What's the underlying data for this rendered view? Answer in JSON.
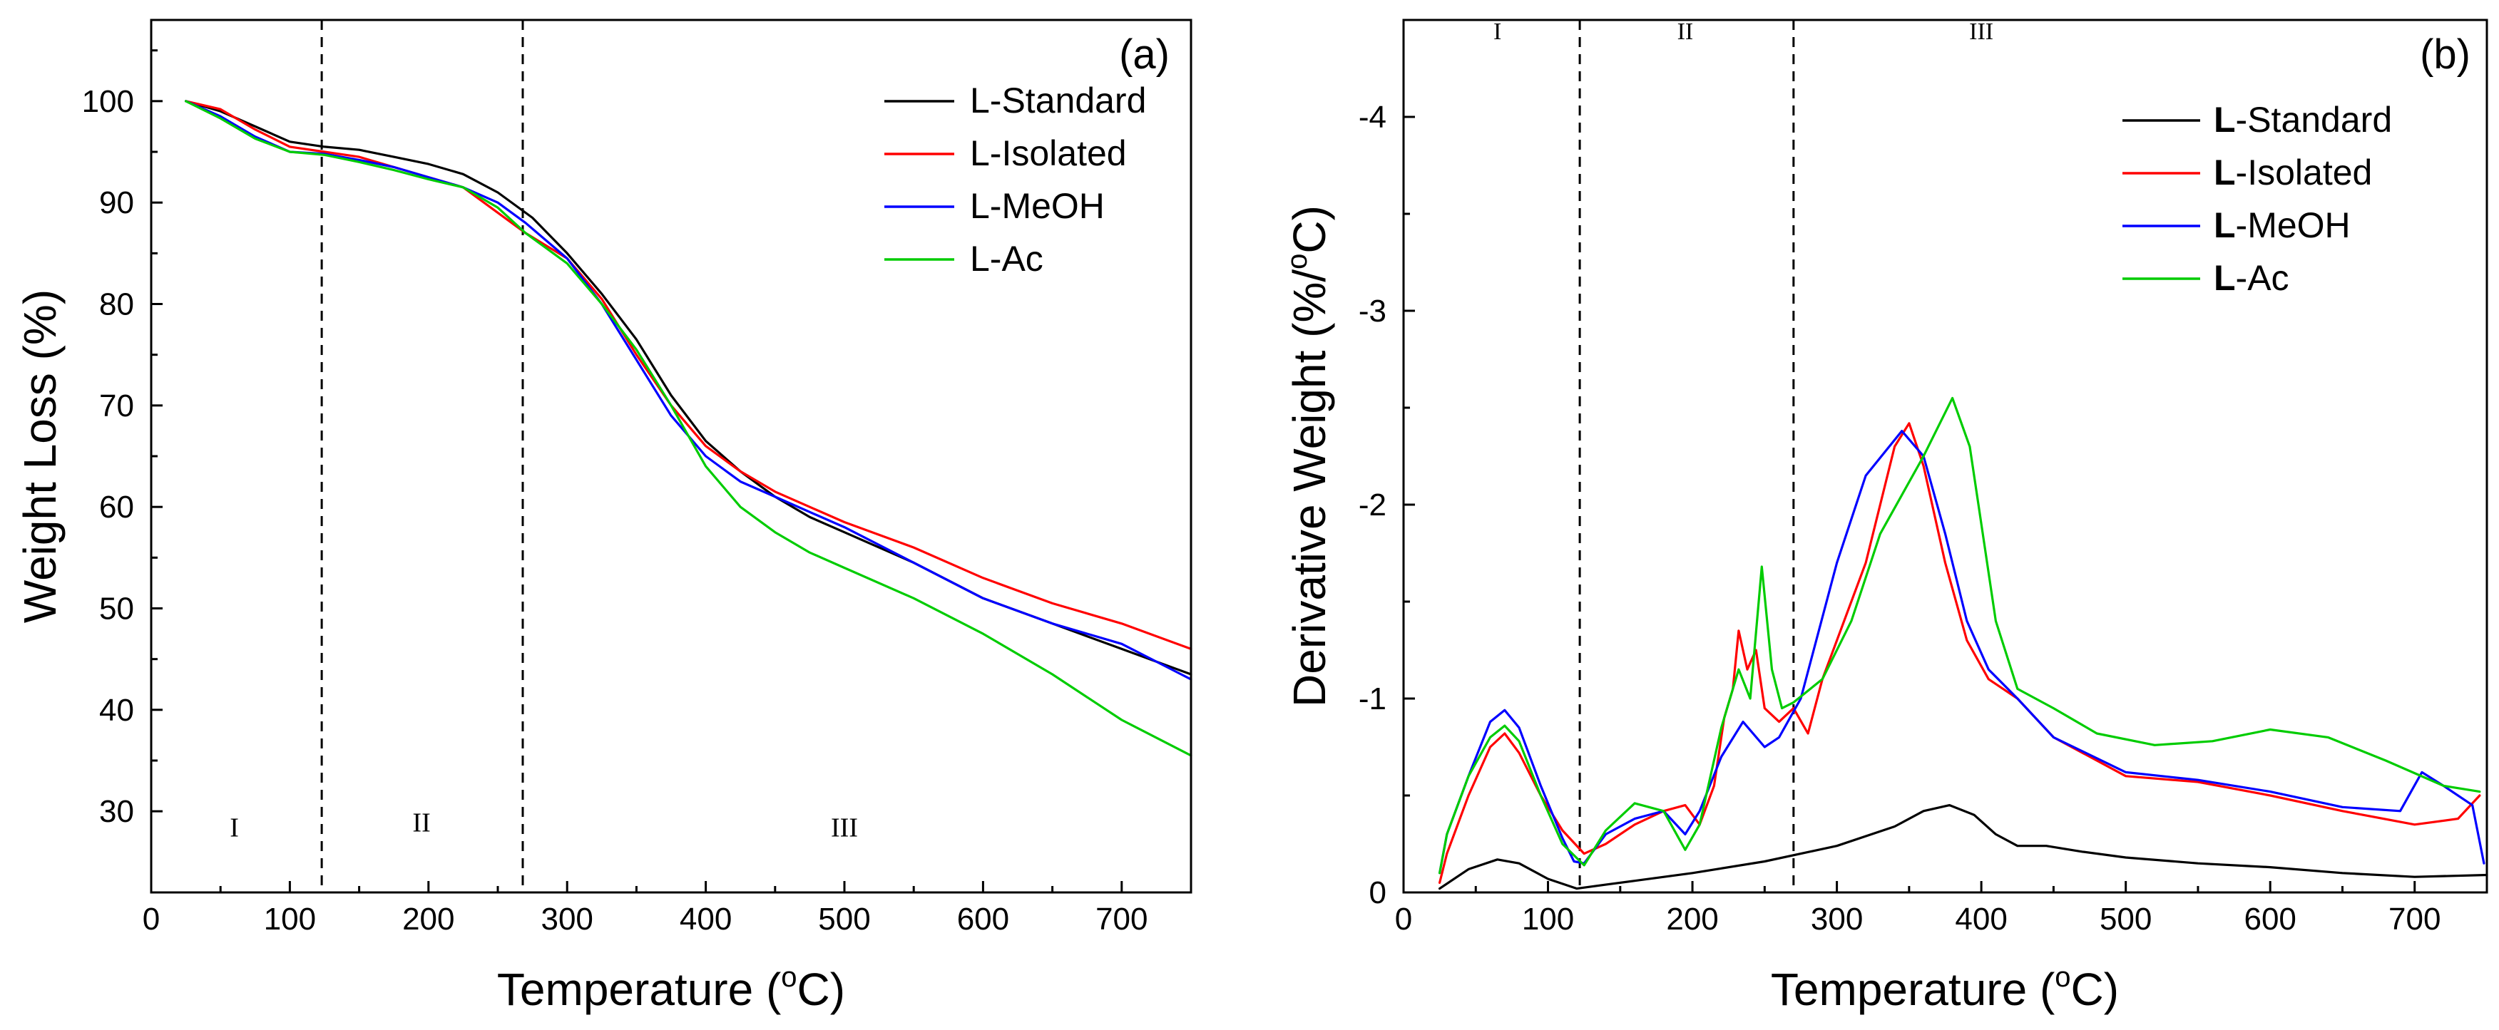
{
  "chart_data": [
    {
      "type": "line",
      "panel_label": "(a)",
      "xlabel": "Temperature (",
      "xlabel_sup": "o",
      "xlabel_suffix": "C)",
      "ylabel": "Weight Loss (%)",
      "xlim": [
        0,
        750
      ],
      "ylim": [
        22,
        108
      ],
      "xticks": [
        0,
        100,
        200,
        300,
        400,
        500,
        600,
        700
      ],
      "yticks": [
        30,
        40,
        50,
        60,
        70,
        80,
        90,
        100
      ],
      "regions": {
        "boundaries": [
          123,
          268
        ],
        "labels": [
          {
            "text": "I",
            "x": 60,
            "y": 27.5
          },
          {
            "text": "II",
            "x": 195,
            "y": 28
          },
          {
            "text": "III",
            "x": 500,
            "y": 27.5
          }
        ]
      },
      "legend_position": "top-right",
      "series": [
        {
          "name": "L-Standard",
          "color": "#000000",
          "points": [
            [
              25,
              100
            ],
            [
              50,
              99
            ],
            [
              75,
              97.5
            ],
            [
              100,
              96
            ],
            [
              125,
              95.5
            ],
            [
              150,
              95.2
            ],
            [
              175,
              94.5
            ],
            [
              200,
              93.8
            ],
            [
              225,
              92.8
            ],
            [
              250,
              91
            ],
            [
              275,
              88.5
            ],
            [
              300,
              85
            ],
            [
              325,
              81
            ],
            [
              350,
              76.5
            ],
            [
              375,
              71
            ],
            [
              400,
              66.5
            ],
            [
              425,
              63.5
            ],
            [
              450,
              61
            ],
            [
              475,
              59
            ],
            [
              500,
              57.5
            ],
            [
              550,
              54.5
            ],
            [
              600,
              51
            ],
            [
              650,
              48.5
            ],
            [
              700,
              46
            ],
            [
              750,
              43.5
            ]
          ]
        },
        {
          "name": "L-Isolated",
          "color": "#ff0000",
          "points": [
            [
              25,
              100
            ],
            [
              50,
              99.2
            ],
            [
              75,
              97.2
            ],
            [
              100,
              95.5
            ],
            [
              125,
              95
            ],
            [
              150,
              94.5
            ],
            [
              175,
              93.5
            ],
            [
              200,
              92.5
            ],
            [
              225,
              91.5
            ],
            [
              250,
              89
            ],
            [
              270,
              87
            ],
            [
              300,
              84.5
            ],
            [
              325,
              80.5
            ],
            [
              350,
              75
            ],
            [
              375,
              70
            ],
            [
              400,
              66
            ],
            [
              425,
              63.5
            ],
            [
              450,
              61.5
            ],
            [
              475,
              60
            ],
            [
              500,
              58.5
            ],
            [
              550,
              56
            ],
            [
              600,
              53
            ],
            [
              650,
              50.5
            ],
            [
              700,
              48.5
            ],
            [
              750,
              46
            ]
          ]
        },
        {
          "name": "L-MeOH",
          "color": "#0000ff",
          "points": [
            [
              25,
              100
            ],
            [
              50,
              98.5
            ],
            [
              75,
              96.5
            ],
            [
              100,
              95
            ],
            [
              125,
              94.8
            ],
            [
              150,
              94.2
            ],
            [
              175,
              93.5
            ],
            [
              200,
              92.5
            ],
            [
              225,
              91.5
            ],
            [
              250,
              90
            ],
            [
              270,
              88
            ],
            [
              300,
              84.5
            ],
            [
              325,
              80
            ],
            [
              350,
              74.5
            ],
            [
              375,
              69
            ],
            [
              400,
              65
            ],
            [
              425,
              62.5
            ],
            [
              450,
              61
            ],
            [
              475,
              59.5
            ],
            [
              500,
              58
            ],
            [
              550,
              54.5
            ],
            [
              600,
              51
            ],
            [
              650,
              48.5
            ],
            [
              700,
              46.5
            ],
            [
              750,
              43
            ]
          ]
        },
        {
          "name": "L-Ac",
          "color": "#00cc00",
          "points": [
            [
              25,
              100
            ],
            [
              50,
              98.3
            ],
            [
              75,
              96.3
            ],
            [
              100,
              95
            ],
            [
              125,
              94.7
            ],
            [
              150,
              94
            ],
            [
              175,
              93.2
            ],
            [
              200,
              92.3
            ],
            [
              225,
              91.5
            ],
            [
              250,
              89.5
            ],
            [
              270,
              87
            ],
            [
              300,
              84
            ],
            [
              325,
              80
            ],
            [
              350,
              75.5
            ],
            [
              375,
              70
            ],
            [
              400,
              64
            ],
            [
              425,
              60
            ],
            [
              450,
              57.5
            ],
            [
              475,
              55.5
            ],
            [
              500,
              54
            ],
            [
              550,
              51
            ],
            [
              600,
              47.5
            ],
            [
              650,
              43.5
            ],
            [
              700,
              39
            ],
            [
              750,
              35.5
            ]
          ]
        }
      ]
    },
    {
      "type": "line",
      "panel_label": "(b)",
      "xlabel": "Temperature (",
      "xlabel_sup": "o",
      "xlabel_suffix": "C)",
      "ylabel": "Derivative Weight (%/",
      "ylabel_sup": "o",
      "ylabel_suffix": "C)",
      "xlim": [
        0,
        750
      ],
      "ylim": [
        0,
        -4.5
      ],
      "xticks": [
        0,
        100,
        200,
        300,
        400,
        500,
        600,
        700
      ],
      "yticks": [
        0,
        -1,
        -2,
        -3,
        -4
      ],
      "regions": {
        "boundaries": [
          122,
          270
        ],
        "labels": [
          {
            "text": "I",
            "x": 65,
            "y": -4.4
          },
          {
            "text": "II",
            "x": 195,
            "y": -4.4
          },
          {
            "text": "III",
            "x": 400,
            "y": -4.4
          }
        ]
      },
      "legend_position": "top-right",
      "series": [
        {
          "name": "L-Standard",
          "color": "#000000",
          "points": [
            [
              25,
              -0.02
            ],
            [
              45,
              -0.12
            ],
            [
              65,
              -0.17
            ],
            [
              80,
              -0.15
            ],
            [
              100,
              -0.07
            ],
            [
              120,
              -0.02
            ],
            [
              140,
              -0.04
            ],
            [
              160,
              -0.06
            ],
            [
              200,
              -0.1
            ],
            [
              250,
              -0.16
            ],
            [
              300,
              -0.24
            ],
            [
              340,
              -0.34
            ],
            [
              360,
              -0.42
            ],
            [
              378,
              -0.45
            ],
            [
              395,
              -0.4
            ],
            [
              410,
              -0.3
            ],
            [
              425,
              -0.24
            ],
            [
              445,
              -0.24
            ],
            [
              470,
              -0.21
            ],
            [
              500,
              -0.18
            ],
            [
              550,
              -0.15
            ],
            [
              600,
              -0.13
            ],
            [
              650,
              -0.1
            ],
            [
              700,
              -0.08
            ],
            [
              750,
              -0.09
            ]
          ]
        },
        {
          "name": "L-Isolated",
          "color": "#ff0000",
          "points": [
            [
              25,
              -0.05
            ],
            [
              30,
              -0.2
            ],
            [
              45,
              -0.5
            ],
            [
              60,
              -0.75
            ],
            [
              70,
              -0.82
            ],
            [
              80,
              -0.72
            ],
            [
              95,
              -0.5
            ],
            [
              110,
              -0.32
            ],
            [
              125,
              -0.2
            ],
            [
              140,
              -0.25
            ],
            [
              160,
              -0.35
            ],
            [
              180,
              -0.42
            ],
            [
              195,
              -0.45
            ],
            [
              205,
              -0.35
            ],
            [
              215,
              -0.55
            ],
            [
              222,
              -0.9
            ],
            [
              228,
              -1.05
            ],
            [
              232,
              -1.35
            ],
            [
              238,
              -1.15
            ],
            [
              244,
              -1.25
            ],
            [
              250,
              -0.95
            ],
            [
              260,
              -0.88
            ],
            [
              270,
              -0.95
            ],
            [
              280,
              -0.82
            ],
            [
              290,
              -1.1
            ],
            [
              300,
              -1.3
            ],
            [
              320,
              -1.7
            ],
            [
              340,
              -2.3
            ],
            [
              350,
              -2.42
            ],
            [
              360,
              -2.2
            ],
            [
              375,
              -1.7
            ],
            [
              390,
              -1.3
            ],
            [
              405,
              -1.1
            ],
            [
              425,
              -1.0
            ],
            [
              450,
              -0.8
            ],
            [
              500,
              -0.6
            ],
            [
              550,
              -0.57
            ],
            [
              600,
              -0.5
            ],
            [
              650,
              -0.42
            ],
            [
              700,
              -0.35
            ],
            [
              730,
              -0.38
            ],
            [
              745,
              -0.5
            ]
          ]
        },
        {
          "name": "L-MeOH",
          "color": "#0000ff",
          "points": [
            [
              25,
              -0.1
            ],
            [
              30,
              -0.3
            ],
            [
              45,
              -0.6
            ],
            [
              60,
              -0.88
            ],
            [
              70,
              -0.94
            ],
            [
              80,
              -0.85
            ],
            [
              95,
              -0.55
            ],
            [
              110,
              -0.28
            ],
            [
              118,
              -0.16
            ],
            [
              125,
              -0.15
            ],
            [
              140,
              -0.3
            ],
            [
              160,
              -0.38
            ],
            [
              180,
              -0.42
            ],
            [
              195,
              -0.3
            ],
            [
              205,
              -0.42
            ],
            [
              220,
              -0.7
            ],
            [
              235,
              -0.88
            ],
            [
              250,
              -0.75
            ],
            [
              260,
              -0.8
            ],
            [
              275,
              -1.0
            ],
            [
              300,
              -1.7
            ],
            [
              320,
              -2.15
            ],
            [
              345,
              -2.38
            ],
            [
              360,
              -2.25
            ],
            [
              375,
              -1.85
            ],
            [
              390,
              -1.4
            ],
            [
              405,
              -1.15
            ],
            [
              425,
              -1.0
            ],
            [
              450,
              -0.8
            ],
            [
              500,
              -0.62
            ],
            [
              550,
              -0.58
            ],
            [
              600,
              -0.52
            ],
            [
              650,
              -0.44
            ],
            [
              690,
              -0.42
            ],
            [
              705,
              -0.62
            ],
            [
              720,
              -0.55
            ],
            [
              740,
              -0.45
            ],
            [
              748,
              -0.15
            ]
          ]
        },
        {
          "name": "L-Ac",
          "color": "#00cc00",
          "points": [
            [
              25,
              -0.1
            ],
            [
              30,
              -0.3
            ],
            [
              45,
              -0.6
            ],
            [
              60,
              -0.8
            ],
            [
              70,
              -0.86
            ],
            [
              80,
              -0.78
            ],
            [
              95,
              -0.5
            ],
            [
              110,
              -0.25
            ],
            [
              125,
              -0.14
            ],
            [
              140,
              -0.32
            ],
            [
              160,
              -0.46
            ],
            [
              180,
              -0.42
            ],
            [
              195,
              -0.22
            ],
            [
              205,
              -0.35
            ],
            [
              220,
              -0.85
            ],
            [
              232,
              -1.15
            ],
            [
              240,
              -1.0
            ],
            [
              248,
              -1.68
            ],
            [
              255,
              -1.15
            ],
            [
              262,
              -0.95
            ],
            [
              270,
              -0.98
            ],
            [
              290,
              -1.1
            ],
            [
              310,
              -1.4
            ],
            [
              330,
              -1.85
            ],
            [
              360,
              -2.25
            ],
            [
              380,
              -2.55
            ],
            [
              392,
              -2.3
            ],
            [
              398,
              -2.0
            ],
            [
              410,
              -1.4
            ],
            [
              425,
              -1.05
            ],
            [
              450,
              -0.95
            ],
            [
              480,
              -0.82
            ],
            [
              520,
              -0.76
            ],
            [
              560,
              -0.78
            ],
            [
              600,
              -0.84
            ],
            [
              640,
              -0.8
            ],
            [
              680,
              -0.68
            ],
            [
              720,
              -0.55
            ],
            [
              745,
              -0.52
            ]
          ]
        }
      ]
    }
  ]
}
